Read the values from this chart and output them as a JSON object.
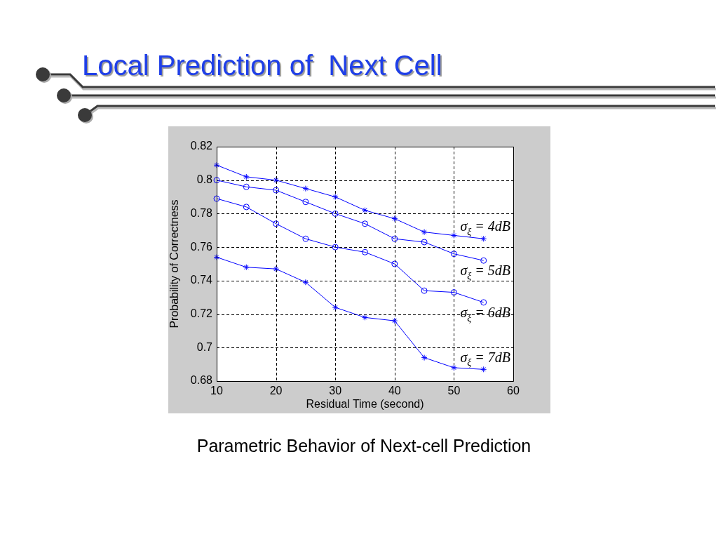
{
  "chart_data": {
    "type": "line",
    "title": "Local Prediction of  Next Cell",
    "xlabel": "Residual Time (second)",
    "ylabel": "Probability of Correctness",
    "x": [
      10,
      15,
      20,
      25,
      30,
      35,
      40,
      45,
      50,
      55
    ],
    "series": [
      {
        "name": "σ$_{ξ}$ = 4dB",
        "color": "#0000ff",
        "marker": "cross",
        "values": [
          0.809,
          0.802,
          0.8,
          0.795,
          0.79,
          0.782,
          0.777,
          0.769,
          0.767,
          0.765
        ]
      },
      {
        "name": "σ$_{ξ}$ = 5dB",
        "color": "#0000ff",
        "marker": "circle",
        "values": [
          0.8,
          0.796,
          0.794,
          0.787,
          0.78,
          0.774,
          0.765,
          0.763,
          0.756,
          0.752
        ]
      },
      {
        "name": "σ$_{ξ}$ = 6dB",
        "color": "#0000ff",
        "marker": "circle",
        "values": [
          0.789,
          0.784,
          0.774,
          0.765,
          0.76,
          0.757,
          0.75,
          0.734,
          0.733,
          0.727
        ]
      },
      {
        "name": "σ$_{ξ}$ = 7dB",
        "color": "#0000ff",
        "marker": "cross",
        "values": [
          0.754,
          0.748,
          0.747,
          0.739,
          0.724,
          0.718,
          0.716,
          0.694,
          0.688,
          0.687
        ]
      }
    ],
    "xlim": [
      10,
      60
    ],
    "xticks": [
      10,
      20,
      30,
      40,
      50,
      60
    ],
    "ylim": [
      0.68,
      0.82
    ],
    "yticks": [
      0.68,
      0.7,
      0.72,
      0.74,
      0.76,
      0.78,
      0.8,
      0.82
    ],
    "grid": true,
    "line_style": "solid",
    "annotations": [
      "Parametric Behavior of Next-cell Prediction"
    ]
  }
}
